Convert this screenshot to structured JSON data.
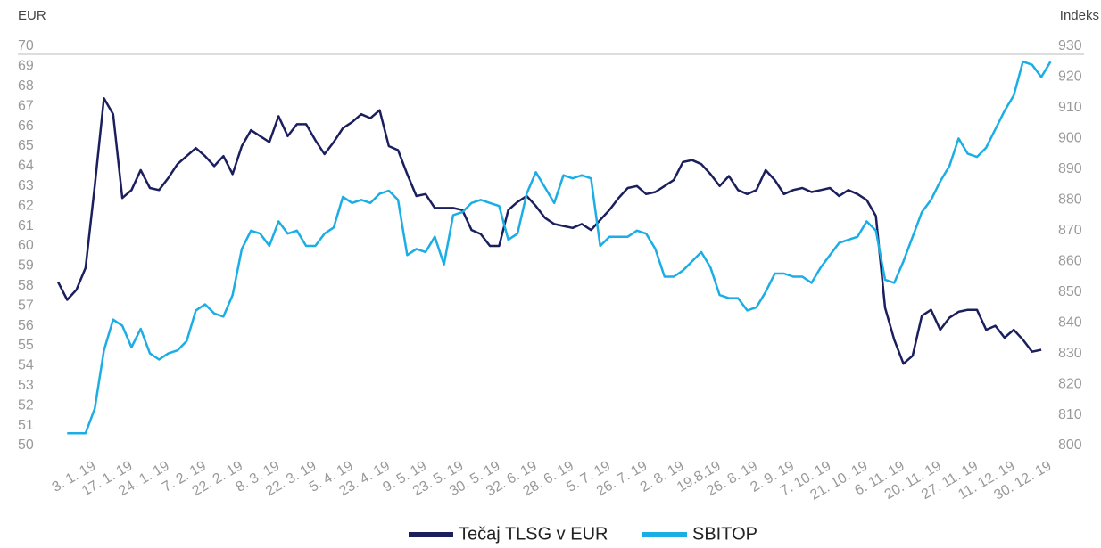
{
  "chart_data": {
    "type": "line",
    "y_axis_label": "EUR",
    "y2_axis_label": "Indeks",
    "categories": [
      null,
      null,
      null,
      null,
      "3. 1. 19",
      null,
      null,
      null,
      "17. 1. 19",
      null,
      null,
      null,
      "24. 1. 19",
      null,
      null,
      null,
      "7. 2. 19",
      null,
      null,
      null,
      "22. 2. 19",
      null,
      null,
      null,
      "8. 3. 19",
      null,
      null,
      null,
      "22. 3. 19",
      null,
      null,
      null,
      "5. 4. 19",
      null,
      null,
      null,
      "23. 4. 19",
      null,
      null,
      null,
      "9. 5. 19",
      null,
      null,
      null,
      "23. 5. 19",
      null,
      null,
      null,
      "30. 5. 19",
      null,
      null,
      null,
      "32. 6. 19",
      null,
      null,
      null,
      "28. 6. 19",
      null,
      null,
      null,
      "5. 7. 19",
      null,
      null,
      null,
      "26. 7. 19",
      null,
      null,
      null,
      "2. 8. 19",
      null,
      null,
      null,
      "19.8.19",
      null,
      null,
      null,
      "26. 8. 19",
      null,
      null,
      null,
      "2. 9. 19",
      null,
      null,
      null,
      "7. 10. 19",
      null,
      null,
      null,
      "21. 10. 19",
      null,
      null,
      null,
      "6. 11. 19",
      null,
      null,
      null,
      "20. 11. 19",
      null,
      null,
      null,
      "27. 11. 19",
      null,
      null,
      null,
      "11. 12. 19",
      null,
      null,
      null,
      "30. 12. 19"
    ],
    "series": [
      {
        "name": "Tečaj TLSG v EUR",
        "color": "#1b1f5e",
        "axis": "y",
        "values": [
          58.2,
          57.3,
          57.8,
          58.9,
          63,
          67.4,
          66.6,
          62.4,
          62.8,
          63.8,
          62.9,
          62.8,
          63.4,
          64.1,
          64.5,
          64.9,
          64.5,
          64,
          64.5,
          63.6,
          65,
          65.8,
          65.5,
          65.2,
          66.5,
          65.5,
          66.1,
          66.1,
          65.3,
          64.6,
          65.2,
          65.9,
          66.2,
          66.6,
          66.4,
          66.8,
          65,
          64.8,
          63.6,
          62.5,
          62.6,
          61.9,
          61.9,
          61.9,
          61.8,
          60.8,
          60.6,
          60,
          60,
          61.8,
          62.2,
          62.5,
          62,
          61.4,
          61.1,
          61,
          60.9,
          61.1,
          60.8,
          61.3,
          61.8,
          62.4,
          62.9,
          63,
          62.6,
          62.7,
          63,
          63.3,
          64.2,
          64.3,
          64.1,
          63.6,
          63,
          63.5,
          62.8,
          62.6,
          62.8,
          63.8,
          63.3,
          62.6,
          62.8,
          62.9,
          62.7,
          62.8,
          62.9,
          62.5,
          62.8,
          62.6,
          62.3,
          61.5,
          56.9,
          55.3,
          54.1,
          54.5,
          56.5,
          56.8,
          55.8,
          56.4,
          56.7,
          56.8,
          56.8,
          55.8,
          56,
          55.4,
          55.8,
          55.3,
          54.7,
          54.8,
          null
        ]
      },
      {
        "name": "SBITOP",
        "color": "#1aaee5",
        "axis": "y2",
        "values": [
          null,
          804,
          804,
          804,
          812,
          831,
          841,
          839,
          832,
          838,
          830,
          828,
          830,
          831,
          834,
          844,
          846,
          843,
          842,
          849,
          864,
          870,
          869,
          865,
          873,
          869,
          870,
          865,
          865,
          869,
          871,
          881,
          879,
          880,
          879,
          882,
          883,
          880,
          862,
          864,
          863,
          868,
          859,
          875,
          876,
          879,
          880,
          879,
          878,
          867,
          869,
          882,
          889,
          884,
          879,
          888,
          887,
          888,
          887,
          865,
          868,
          868,
          868,
          870,
          869,
          864,
          855,
          855,
          857,
          860,
          863,
          858,
          849,
          848,
          848,
          844,
          845,
          850,
          856,
          856,
          855,
          855,
          853,
          858,
          862,
          866,
          867,
          868,
          873,
          870,
          854,
          853,
          860,
          868,
          876,
          880,
          886,
          891,
          900,
          895,
          894,
          897,
          903,
          909,
          914,
          925,
          924,
          920,
          925
        ]
      }
    ],
    "ylim": [
      50,
      70
    ],
    "yticks": [
      50,
      51,
      52,
      53,
      54,
      55,
      56,
      57,
      58,
      59,
      60,
      61,
      62,
      63,
      64,
      65,
      66,
      67,
      68,
      69,
      70
    ],
    "y2lim": [
      800,
      930
    ],
    "y2ticks": [
      800,
      810,
      820,
      830,
      840,
      850,
      860,
      870,
      880,
      890,
      900,
      910,
      920,
      930
    ],
    "legend": "bottom"
  }
}
